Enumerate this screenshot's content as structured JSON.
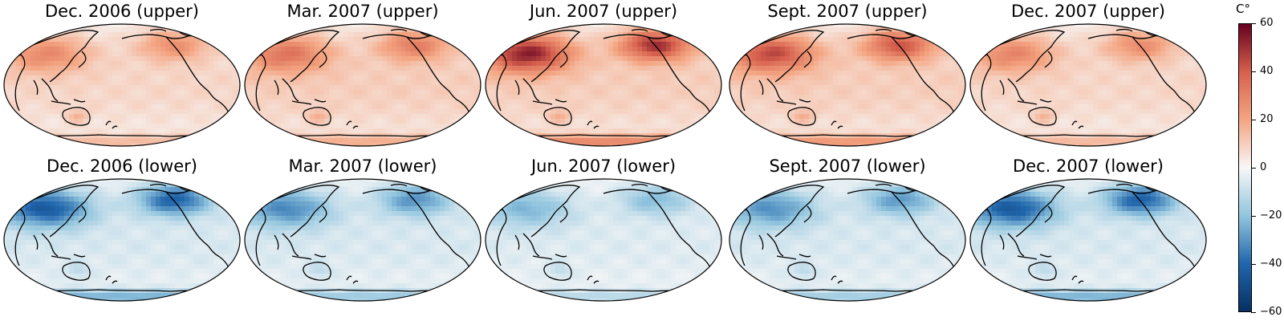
{
  "colorbar": {
    "unit": "C$^\\circ$",
    "unit_display": "C°",
    "range": [
      -60,
      60
    ],
    "ticks": [
      60,
      40,
      20,
      0,
      -20,
      -40,
      -60
    ],
    "tick_labels": [
      "60",
      "40",
      "20",
      "0",
      "−20",
      "−40",
      "−60"
    ],
    "colormap": "RdBu_r",
    "colors": {
      "negative_end": "#053061",
      "mid": "#f7f7f7",
      "positive_end": "#67001f"
    }
  },
  "panels": [
    {
      "title": "Dec. 2006 (upper)",
      "layer": "upper",
      "month": "Dec. 2006",
      "base": 8,
      "strength": 25
    },
    {
      "title": "Mar. 2007 (upper)",
      "layer": "upper",
      "month": "Mar. 2007",
      "base": 10,
      "strength": 30
    },
    {
      "title": "Jun. 2007 (upper)",
      "layer": "upper",
      "month": "Jun. 2007",
      "base": 10,
      "strength": 52
    },
    {
      "title": "Sept. 2007 (upper)",
      "layer": "upper",
      "month": "Sept. 2007",
      "base": 10,
      "strength": 42
    },
    {
      "title": "Dec. 2007 (upper)",
      "layer": "upper",
      "month": "Dec. 2007",
      "base": 8,
      "strength": 26
    },
    {
      "title": "Dec. 2006 (lower)",
      "layer": "lower",
      "month": "Dec. 2006",
      "base": -6,
      "strength": -45
    },
    {
      "title": "Mar. 2007 (lower)",
      "layer": "lower",
      "month": "Mar. 2007",
      "base": -6,
      "strength": -32
    },
    {
      "title": "Jun. 2007 (lower)",
      "layer": "lower",
      "month": "Jun. 2007",
      "base": -5,
      "strength": -22
    },
    {
      "title": "Sept. 2007 (lower)",
      "layer": "lower",
      "month": "Sept. 2007",
      "base": -6,
      "strength": -30
    },
    {
      "title": "Dec. 2007 (lower)",
      "layer": "lower",
      "month": "Dec. 2007",
      "base": -6,
      "strength": -45
    }
  ]
}
